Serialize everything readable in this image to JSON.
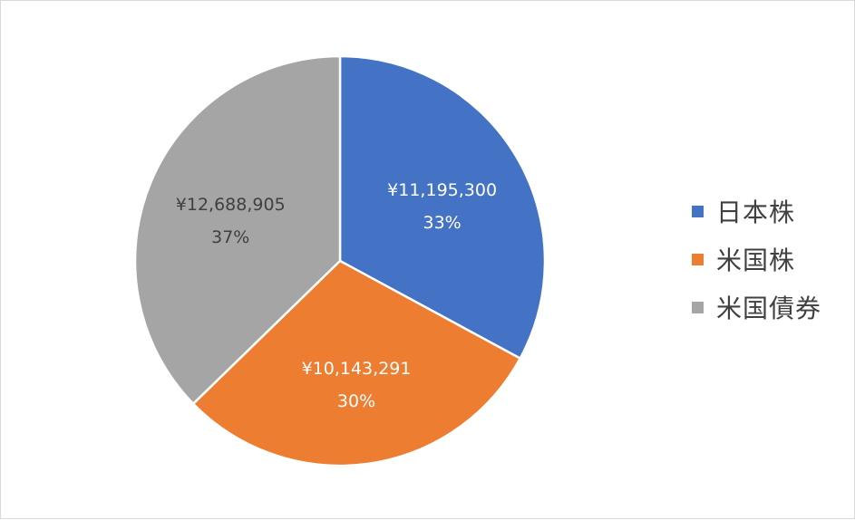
{
  "chart_data": {
    "type": "pie",
    "title": "",
    "categories": [
      "日本株",
      "米国株",
      "米国債券"
    ],
    "values": [
      11195300,
      10143291,
      12688905
    ],
    "value_labels": [
      "¥11,195,300",
      "¥10,143,291",
      "¥12,688,905"
    ],
    "percent_labels": [
      "33%",
      "30%",
      "37%"
    ],
    "colors": [
      "#4472C4",
      "#ED7D31",
      "#A5A5A5"
    ],
    "label_colors": [
      "#ffffff",
      "#ffffff",
      "#404040"
    ],
    "legend_position": "right"
  }
}
